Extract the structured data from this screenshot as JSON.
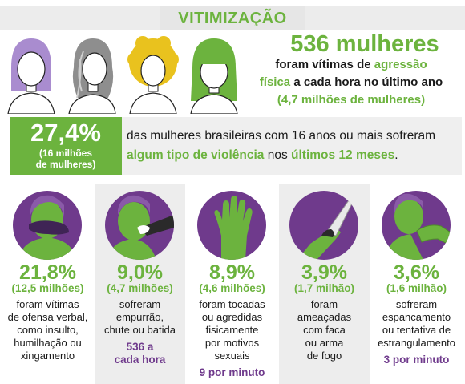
{
  "header": {
    "title": "VITIMIZAÇÃO"
  },
  "headline": {
    "number": "536 mulheres",
    "line1_a": "foram vítimas de ",
    "line1_b": "agressão",
    "line2_a": "física",
    "line2_b": " a cada hora no último ano",
    "line3": "(4,7 milhões de mulheres)"
  },
  "colors": {
    "green": "#6cb33e",
    "purple": "#6f3a8c"
  },
  "faces": [
    {
      "icon": "woman-short-hair-icon",
      "hair": "#a98ccf"
    },
    {
      "icon": "woman-long-hair-icon",
      "hair": "#9a9a9a"
    },
    {
      "icon": "woman-curly-hair-icon",
      "hair": "#e9c21e"
    },
    {
      "icon": "woman-bangs-hair-icon",
      "hair": "#6cb33e"
    }
  ],
  "stat": {
    "value": "27,4%",
    "sub1": "(16 milhões",
    "sub2": "de mulheres)",
    "text_a": "das mulheres brasileiras com 16 anos ou mais sofreram",
    "text_b": "algum tipo de violência",
    "text_c": " nos ",
    "text_d": "últimos 12 meses",
    "text_e": "."
  },
  "columns": [
    {
      "icon": "hand-over-mouth-icon",
      "pct": "21,8%",
      "sub": "(12,5 milhões)",
      "desc": [
        "foram vítimas",
        "de ofensa verbal,",
        "como insulto,",
        "humilhação ou",
        "xingamento"
      ],
      "rate": []
    },
    {
      "icon": "hand-push-icon",
      "pct": "9,0%",
      "sub": "(4,7 milhões)",
      "desc": [
        "sofreram",
        "empurrão,",
        "chute ou batida"
      ],
      "rate": [
        "536 a",
        "cada hora"
      ]
    },
    {
      "icon": "raised-hand-icon",
      "pct": "8,9%",
      "sub": "(4,6 milhões)",
      "desc": [
        "foram tocadas",
        "ou agredidas",
        "fisicamente",
        "por motivos",
        "sexuais"
      ],
      "rate": [
        "9 por minuto"
      ]
    },
    {
      "icon": "knife-hand-icon",
      "pct": "3,9%",
      "sub": "(1,7 milhão)",
      "desc": [
        "foram",
        "ameaçadas",
        "com faca",
        "ou arma",
        "de fogo"
      ],
      "rate": []
    },
    {
      "icon": "choking-hand-icon",
      "pct": "3,6%",
      "sub": "(1,6 milhão)",
      "desc": [
        "sofreram",
        "espancamento",
        "ou tentativa de",
        "estrangulamento"
      ],
      "rate": [
        "3 por minuto"
      ]
    }
  ]
}
